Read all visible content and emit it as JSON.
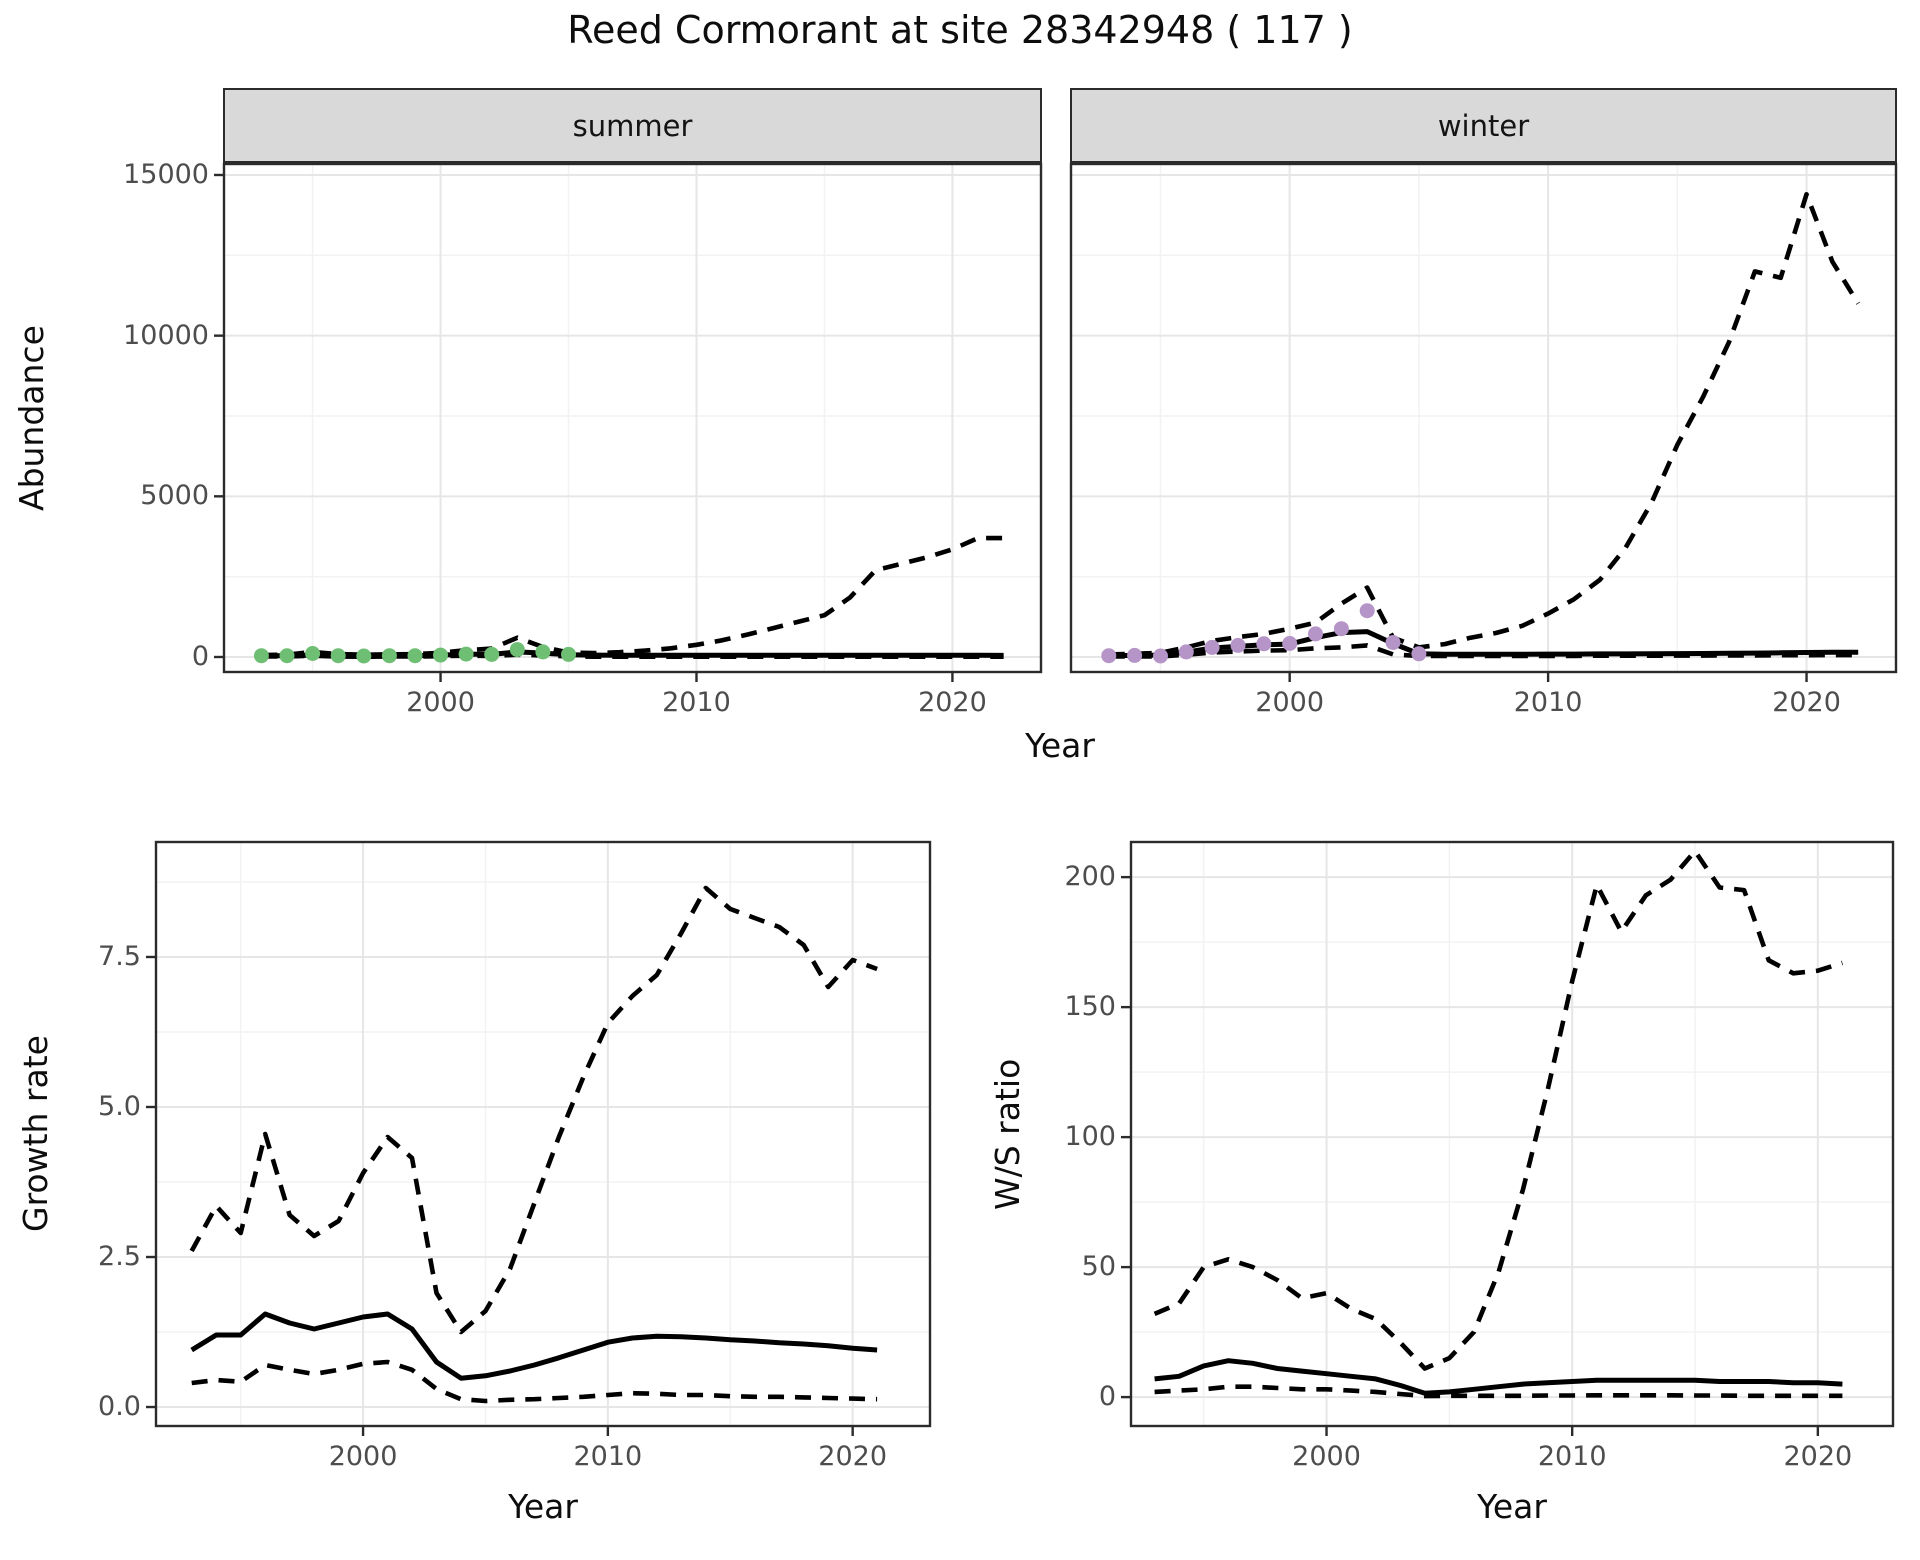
{
  "title": "Reed Cormorant at site 28342948 ( 117 )",
  "colors": {
    "summer_points": "#6ebe73",
    "winter_points": "#b594c7",
    "line": "#000000",
    "strip_background": "#d9d9d9",
    "panel_border": "#2b2b2b",
    "grid_major": "#e6e6e6",
    "grid_minor": "#f2f2f2",
    "tick_text": "#4d4d4d"
  },
  "chart_data": [
    {
      "id": "abundance-summer",
      "type": "line",
      "facet": "summer",
      "xlabel": "Year",
      "ylabel": "Abundance",
      "legend_position": "none",
      "grid": true,
      "xlim": [
        1991.5,
        2023.5
      ],
      "ylim": [
        -498,
        15373
      ],
      "xticks": [
        {
          "v": 2000,
          "label": "2000"
        },
        {
          "v": 2010,
          "label": "2010"
        },
        {
          "v": 2020,
          "label": "2020"
        }
      ],
      "yticks": [
        {
          "v": 0,
          "label": "0"
        },
        {
          "v": 5000,
          "label": "5000"
        },
        {
          "v": 10000,
          "label": "10000"
        },
        {
          "v": 15000,
          "label": "15000"
        }
      ],
      "xminor": [
        1995,
        2005,
        2015
      ],
      "yminor": [
        2500,
        7500,
        12500
      ],
      "x": [
        1993,
        1994,
        1995,
        1996,
        1997,
        1998,
        1999,
        2000,
        2001,
        2002,
        2003,
        2004,
        2005,
        2006,
        2007,
        2008,
        2009,
        2010,
        2011,
        2012,
        2013,
        2014,
        2015,
        2016,
        2017,
        2018,
        2019,
        2020,
        2021,
        2022
      ],
      "series": [
        {
          "name": "lower_ci",
          "style": "dashed",
          "values": [
            15,
            15,
            40,
            15,
            10,
            15,
            15,
            25,
            40,
            30,
            70,
            50,
            20,
            10,
            10,
            10,
            10,
            10,
            10,
            10,
            10,
            10,
            10,
            10,
            10,
            10,
            10,
            10,
            10,
            10
          ]
        },
        {
          "name": "upper_ci",
          "style": "dashed",
          "values": [
            60,
            70,
            160,
            90,
            70,
            80,
            90,
            130,
            210,
            260,
            600,
            310,
            140,
            120,
            150,
            200,
            270,
            380,
            520,
            700,
            900,
            1100,
            1300,
            1850,
            2700,
            2900,
            3100,
            3350,
            3700,
            3700
          ]
        },
        {
          "name": "model_fit",
          "style": "solid",
          "values": [
            40,
            40,
            60,
            40,
            30,
            40,
            40,
            60,
            90,
            80,
            160,
            120,
            70,
            60,
            55,
            55,
            55,
            55,
            55,
            55,
            55,
            55,
            55,
            55,
            55,
            55,
            55,
            55,
            55,
            50
          ]
        }
      ],
      "points": {
        "name": "observed_counts_summer",
        "color": "#6ebe73",
        "x": [
          1993,
          1994,
          1995,
          1996,
          1997,
          1998,
          1999,
          2000,
          2001,
          2002,
          2003,
          2004,
          2005
        ],
        "values": [
          40,
          40,
          110,
          40,
          30,
          40,
          40,
          60,
          90,
          80,
          230,
          160,
          80
        ]
      }
    },
    {
      "id": "abundance-winter",
      "type": "line",
      "facet": "winter",
      "xlabel": "Year",
      "ylabel": "Abundance",
      "legend_position": "none",
      "grid": true,
      "xlim": [
        1991.5,
        2023.5
      ],
      "ylim": [
        -498,
        15373
      ],
      "xticks": [
        {
          "v": 2000,
          "label": "2000"
        },
        {
          "v": 2010,
          "label": "2010"
        },
        {
          "v": 2020,
          "label": "2020"
        }
      ],
      "yticks": [
        {
          "v": 0,
          "label": "0"
        },
        {
          "v": 5000,
          "label": "5000"
        },
        {
          "v": 10000,
          "label": "10000"
        },
        {
          "v": 15000,
          "label": "15000"
        }
      ],
      "xminor": [
        1995,
        2005,
        2015
      ],
      "yminor": [
        2500,
        7500,
        12500
      ],
      "x": [
        1993,
        1994,
        1995,
        1996,
        1997,
        1998,
        1999,
        2000,
        2001,
        2002,
        2003,
        2004,
        2005,
        2006,
        2007,
        2008,
        2009,
        2010,
        2011,
        2012,
        2013,
        2014,
        2015,
        2016,
        2017,
        2018,
        2019,
        2020,
        2021,
        2022
      ],
      "series": [
        {
          "name": "lower_ci",
          "style": "dashed",
          "values": [
            15,
            20,
            15,
            70,
            140,
            170,
            200,
            210,
            270,
            300,
            360,
            80,
            30,
            30,
            30,
            30,
            30,
            35,
            35,
            40,
            40,
            40,
            45,
            45,
            50,
            50,
            55,
            55,
            60,
            60
          ]
        },
        {
          "name": "upper_ci",
          "style": "dashed",
          "values": [
            80,
            100,
            130,
            300,
            500,
            620,
            720,
            880,
            1070,
            1660,
            2160,
            600,
            300,
            400,
            600,
            750,
            970,
            1350,
            1800,
            2400,
            3400,
            4800,
            6600,
            8100,
            9800,
            12000,
            11800,
            14400,
            12300,
            11000
          ]
        },
        {
          "name": "model_fit",
          "style": "solid",
          "values": [
            40,
            50,
            60,
            150,
            280,
            330,
            380,
            400,
            600,
            760,
            790,
            420,
            100,
            85,
            85,
            85,
            85,
            90,
            90,
            95,
            95,
            100,
            105,
            110,
            115,
            120,
            130,
            140,
            145,
            150
          ]
        }
      ],
      "points": {
        "name": "observed_counts_winter",
        "color": "#b594c7",
        "x": [
          1993,
          1994,
          1995,
          1996,
          1997,
          1998,
          1999,
          2000,
          2001,
          2002,
          2003,
          2004,
          2005
        ],
        "values": [
          40,
          50,
          30,
          160,
          300,
          360,
          410,
          420,
          720,
          880,
          1440,
          450,
          100
        ]
      }
    },
    {
      "id": "growth-rate",
      "type": "line",
      "facet": null,
      "xlabel": "Year",
      "ylabel": "Growth rate",
      "legend_position": "none",
      "grid": true,
      "xlim": [
        1991.5,
        2023.2
      ],
      "ylim": [
        -0.333,
        9.433
      ],
      "xticks": [
        {
          "v": 2000,
          "label": "2000"
        },
        {
          "v": 2010,
          "label": "2010"
        },
        {
          "v": 2020,
          "label": "2020"
        }
      ],
      "yticks": [
        {
          "v": 0,
          "label": "0.0"
        },
        {
          "v": 2.5,
          "label": "2.5"
        },
        {
          "v": 5,
          "label": "5.0"
        },
        {
          "v": 7.5,
          "label": "7.5"
        }
      ],
      "xminor": [
        1995,
        2005,
        2015
      ],
      "yminor": [
        1.25,
        3.75,
        6.25,
        8.75
      ],
      "x": [
        1993,
        1994,
        1995,
        1996,
        1997,
        1998,
        1999,
        2000,
        2001,
        2002,
        2003,
        2004,
        2005,
        2006,
        2007,
        2008,
        2009,
        2010,
        2011,
        2012,
        2013,
        2014,
        2015,
        2016,
        2017,
        2018,
        2019,
        2020,
        2021
      ],
      "series": [
        {
          "name": "lower_ci",
          "style": "dashed",
          "values": [
            0.4,
            0.45,
            0.42,
            0.7,
            0.62,
            0.55,
            0.62,
            0.72,
            0.75,
            0.62,
            0.3,
            0.13,
            0.1,
            0.12,
            0.13,
            0.15,
            0.17,
            0.2,
            0.23,
            0.22,
            0.2,
            0.2,
            0.18,
            0.17,
            0.17,
            0.16,
            0.15,
            0.14,
            0.13
          ]
        },
        {
          "name": "upper_ci",
          "style": "dashed",
          "values": [
            2.6,
            3.35,
            2.9,
            4.55,
            3.2,
            2.85,
            3.1,
            3.9,
            4.5,
            4.15,
            1.9,
            1.25,
            1.6,
            2.3,
            3.4,
            4.5,
            5.5,
            6.4,
            6.85,
            7.2,
            7.9,
            8.65,
            8.3,
            8.15,
            8.0,
            7.7,
            7.0,
            7.45,
            7.3
          ]
        },
        {
          "name": "model_fit",
          "style": "solid",
          "values": [
            0.95,
            1.2,
            1.2,
            1.55,
            1.4,
            1.3,
            1.4,
            1.5,
            1.55,
            1.3,
            0.75,
            0.48,
            0.52,
            0.6,
            0.7,
            0.82,
            0.95,
            1.08,
            1.15,
            1.18,
            1.17,
            1.15,
            1.12,
            1.1,
            1.07,
            1.05,
            1.02,
            0.98,
            0.95
          ]
        }
      ],
      "points": null
    },
    {
      "id": "ws-ratio",
      "type": "line",
      "facet": null,
      "xlabel": "Year",
      "ylabel": "W/S ratio",
      "legend_position": "none",
      "grid": true,
      "xlim": [
        1992,
        2023.1
      ],
      "ylim": [
        -11.5,
        213.9
      ],
      "xticks": [
        {
          "v": 2000,
          "label": "2000"
        },
        {
          "v": 2010,
          "label": "2010"
        },
        {
          "v": 2020,
          "label": "2020"
        }
      ],
      "yticks": [
        {
          "v": 0,
          "label": "0"
        },
        {
          "v": 50,
          "label": "50"
        },
        {
          "v": 100,
          "label": "100"
        },
        {
          "v": 150,
          "label": "150"
        },
        {
          "v": 200,
          "label": "200"
        }
      ],
      "xminor": [
        1995,
        2005,
        2015
      ],
      "yminor": [
        25,
        75,
        125,
        175
      ],
      "x": [
        1993,
        1994,
        1995,
        1996,
        1997,
        1998,
        1999,
        2000,
        2001,
        2002,
        2003,
        2004,
        2005,
        2006,
        2007,
        2008,
        2009,
        2010,
        2011,
        2012,
        2013,
        2014,
        2015,
        2016,
        2017,
        2018,
        2019,
        2020,
        2021
      ],
      "series": [
        {
          "name": "lower_ci",
          "style": "dashed",
          "values": [
            2,
            2.5,
            3,
            4,
            4,
            3.5,
            3,
            3,
            2.5,
            2,
            1.2,
            0.4,
            0.5,
            0.5,
            0.5,
            0.5,
            0.6,
            0.6,
            0.7,
            0.7,
            0.7,
            0.7,
            0.6,
            0.6,
            0.5,
            0.5,
            0.5,
            0.5,
            0.5
          ]
        },
        {
          "name": "upper_ci",
          "style": "dashed",
          "values": [
            32,
            36,
            50,
            53,
            50,
            45,
            38,
            40,
            34,
            30,
            21,
            11,
            15,
            25,
            48,
            80,
            118,
            160,
            197,
            179,
            193,
            199,
            210,
            196,
            195,
            168,
            163,
            164,
            167
          ]
        },
        {
          "name": "model_fit",
          "style": "solid",
          "values": [
            7,
            8,
            12,
            14,
            13,
            11,
            10,
            9,
            8,
            7,
            4.5,
            1.5,
            2,
            3,
            4,
            5,
            5.5,
            6,
            6.5,
            6.5,
            6.5,
            6.5,
            6.5,
            6,
            6,
            6,
            5.5,
            5.5,
            5
          ]
        }
      ],
      "points": null
    }
  ]
}
